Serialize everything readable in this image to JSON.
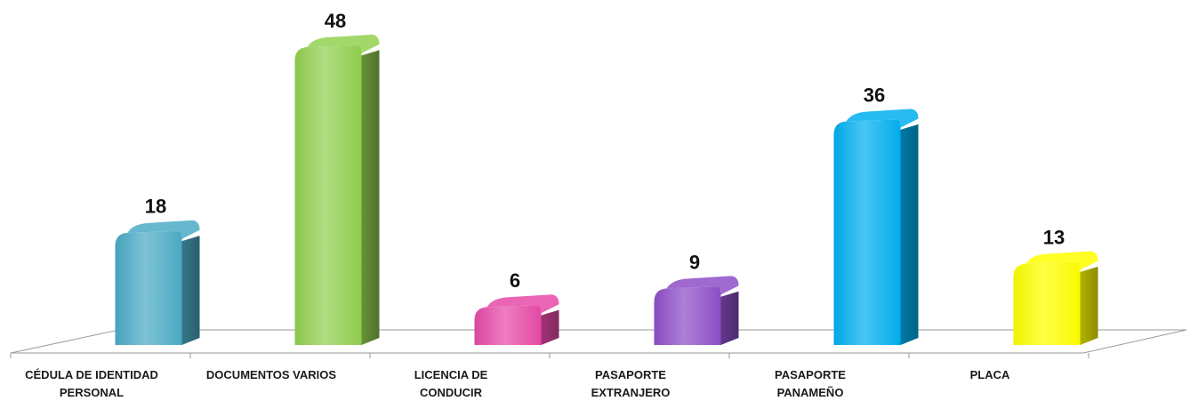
{
  "chart_data": {
    "type": "bar",
    "categories": [
      [
        "CÉDULA DE IDENTIDAD",
        "PERSONAL"
      ],
      [
        "DOCUMENTOS VARIOS"
      ],
      [
        "LICENCIA DE",
        "CONDUCIR"
      ],
      [
        "PASAPORTE",
        "EXTRANJERO"
      ],
      [
        "PASAPORTE",
        "PANAMEÑO"
      ],
      [
        "PLACA"
      ]
    ],
    "values": [
      18,
      48,
      6,
      9,
      36,
      13
    ],
    "colors": [
      "#4bacc6",
      "#92d050",
      "#e84aa8",
      "#8e4fc8",
      "#00b0f0",
      "#ffff00"
    ],
    "title": "",
    "xlabel": "",
    "ylabel": "",
    "ylim": [
      0,
      50
    ],
    "grid": false,
    "legend": "none",
    "style": "3d-cylinder"
  }
}
